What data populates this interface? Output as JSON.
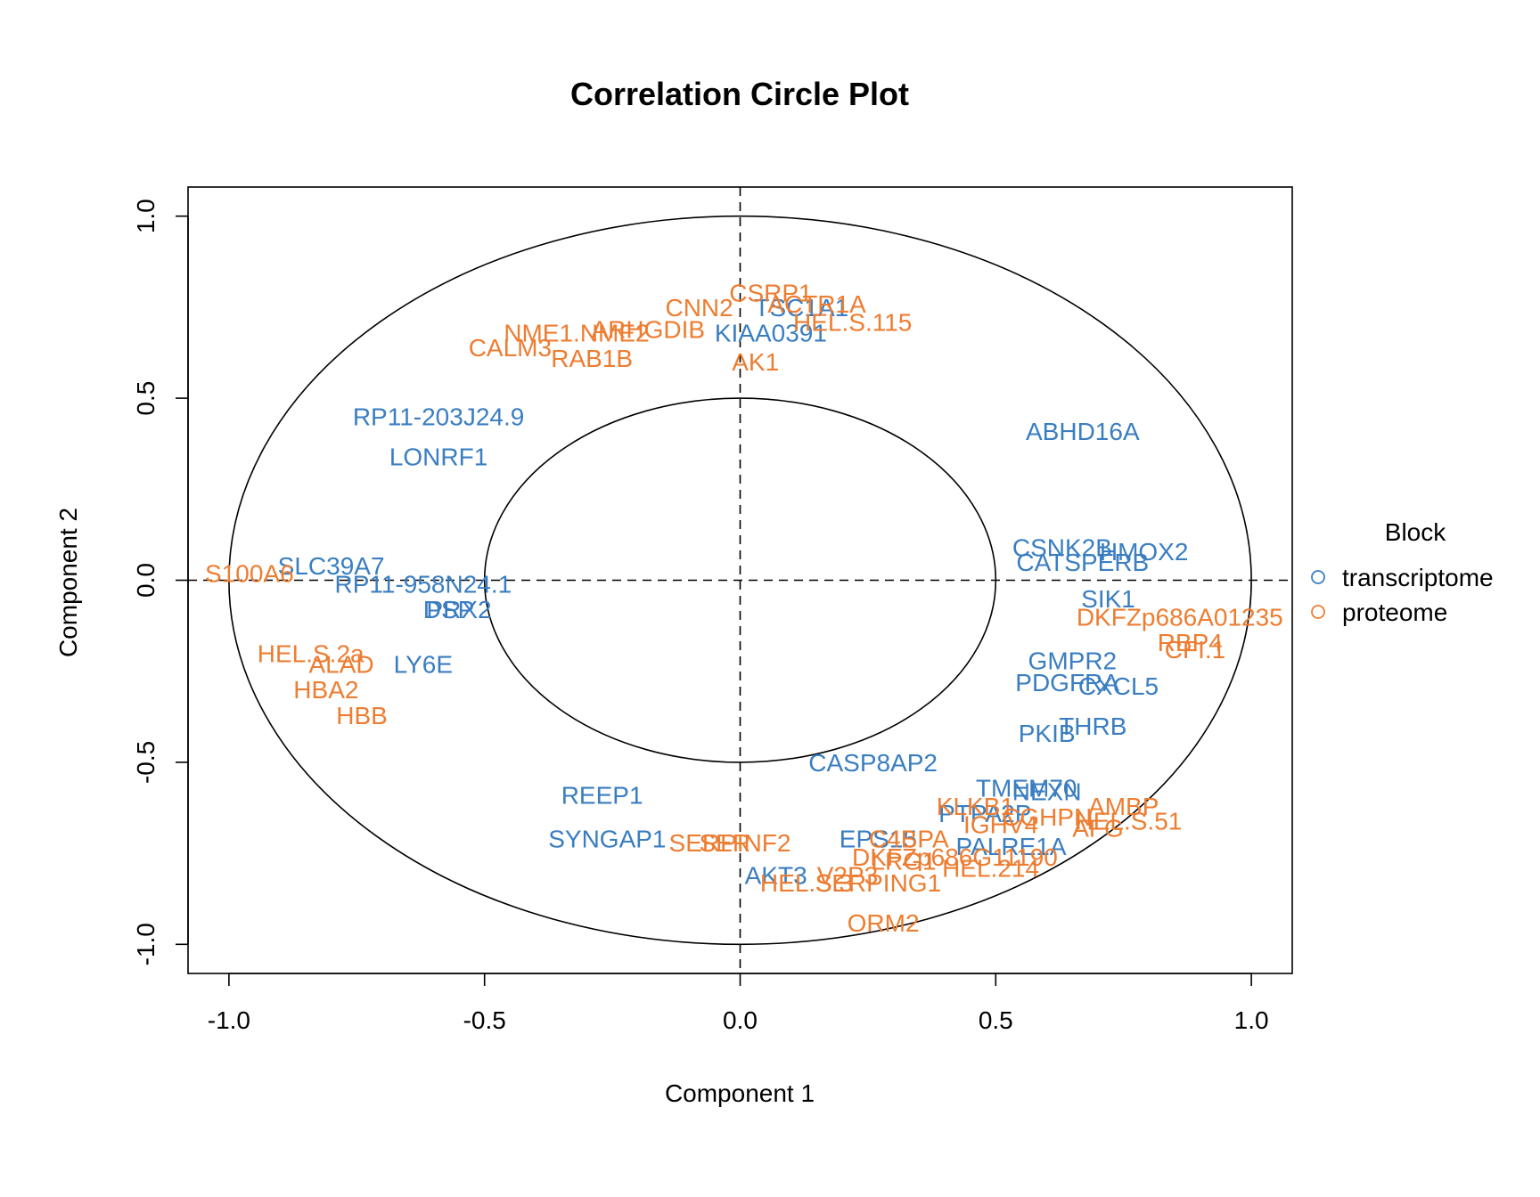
{
  "chart_data": {
    "type": "scatter",
    "title": "Correlation Circle Plot",
    "xlabel": "Component  1",
    "ylabel": "Component  2",
    "xlim": [
      -1.08,
      1.08
    ],
    "ylim": [
      -1.08,
      1.08
    ],
    "xticks": [
      -1.0,
      -0.5,
      0.0,
      0.5,
      1.0
    ],
    "yticks": [
      -1.0,
      -0.5,
      0.0,
      0.5,
      1.0
    ],
    "xtick_labels": [
      "-1.0",
      "-0.5",
      "0.0",
      "0.5",
      "1.0"
    ],
    "ytick_labels": [
      "-1.0",
      "-0.5",
      "0.0",
      "0.5",
      "1.0"
    ],
    "circles": [
      0.5,
      1.0
    ],
    "reference_lines": {
      "x": 0,
      "y": 0,
      "style": "dashed"
    },
    "legend": {
      "title": "Block",
      "position": "right",
      "entries": [
        {
          "name": "transcriptome",
          "color": "#3A7EC1"
        },
        {
          "name": "proteome",
          "color": "#ED7D31"
        }
      ]
    },
    "series": [
      {
        "name": "transcriptome",
        "color": "#3A7EC1",
        "points": [
          {
            "label": "RP11-203J24.9",
            "x": -0.59,
            "y": 0.45
          },
          {
            "label": "LONRF1",
            "x": -0.59,
            "y": 0.34
          },
          {
            "label": "ABHD16A",
            "x": 0.67,
            "y": 0.41
          },
          {
            "label": "SLC39A7",
            "x": -0.8,
            "y": 0.04
          },
          {
            "label": "RP11-958N24.1",
            "x": -0.62,
            "y": -0.01
          },
          {
            "label": "DSP",
            "x": -0.57,
            "y": -0.08
          },
          {
            "label": "PRX2",
            "x": -0.55,
            "y": -0.08
          },
          {
            "label": "LY6E",
            "x": -0.62,
            "y": -0.23
          },
          {
            "label": "KIAA0391",
            "x": 0.06,
            "y": 0.68
          },
          {
            "label": "TSC1A1",
            "x": 0.12,
            "y": 0.75
          },
          {
            "label": "CSNK2B",
            "x": 0.63,
            "y": 0.09
          },
          {
            "label": "CATSPERB",
            "x": 0.67,
            "y": 0.05
          },
          {
            "label": "HMOX2",
            "x": 0.79,
            "y": 0.08
          },
          {
            "label": "SIK1",
            "x": 0.72,
            "y": -0.05
          },
          {
            "label": "GMPR2",
            "x": 0.65,
            "y": -0.22
          },
          {
            "label": "PDGFRA",
            "x": 0.64,
            "y": -0.28
          },
          {
            "label": "CXCL5",
            "x": 0.74,
            "y": -0.29
          },
          {
            "label": "PKIB",
            "x": 0.6,
            "y": -0.42
          },
          {
            "label": "THRB",
            "x": 0.69,
            "y": -0.4
          },
          {
            "label": "CASP8AP2",
            "x": 0.26,
            "y": -0.5
          },
          {
            "label": "REEP1",
            "x": -0.27,
            "y": -0.59
          },
          {
            "label": "SYNGAP1",
            "x": -0.26,
            "y": -0.71
          },
          {
            "label": "AKT3",
            "x": 0.07,
            "y": -0.81
          },
          {
            "label": "EPS15",
            "x": 0.27,
            "y": -0.71
          },
          {
            "label": "TMEM70",
            "x": 0.56,
            "y": -0.57
          },
          {
            "label": "NEXN",
            "x": 0.6,
            "y": -0.58
          },
          {
            "label": "PTPA",
            "x": 0.45,
            "y": -0.64
          },
          {
            "label": "2P",
            "x": 0.54,
            "y": -0.64
          },
          {
            "label": "PALRE1A",
            "x": 0.53,
            "y": -0.73
          }
        ]
      },
      {
        "name": "proteome",
        "color": "#ED7D31",
        "points": [
          {
            "label": "CSRP1",
            "x": 0.06,
            "y": 0.79
          },
          {
            "label": "CNN2",
            "x": -0.08,
            "y": 0.75
          },
          {
            "label": "ACTR1A",
            "x": 0.15,
            "y": 0.76
          },
          {
            "label": "HEL.S.115",
            "x": 0.22,
            "y": 0.71
          },
          {
            "label": "ARHGDIB",
            "x": -0.18,
            "y": 0.69
          },
          {
            "label": "NME1.NME2",
            "x": -0.32,
            "y": 0.68
          },
          {
            "label": "CALM3",
            "x": -0.45,
            "y": 0.64
          },
          {
            "label": "RAB1B",
            "x": -0.29,
            "y": 0.61
          },
          {
            "label": "AK1",
            "x": 0.03,
            "y": 0.6
          },
          {
            "label": "S100A6",
            "x": -0.96,
            "y": 0.02
          },
          {
            "label": "HEL.S.2a",
            "x": -0.84,
            "y": -0.2
          },
          {
            "label": "ALAD",
            "x": -0.78,
            "y": -0.23
          },
          {
            "label": "HBA2",
            "x": -0.81,
            "y": -0.3
          },
          {
            "label": "HBB",
            "x": -0.74,
            "y": -0.37
          },
          {
            "label": "DKFZp686A01235",
            "x": 0.86,
            "y": -0.1
          },
          {
            "label": "RBP4",
            "x": 0.88,
            "y": -0.17
          },
          {
            "label": "CFI.1",
            "x": 0.89,
            "y": -0.19
          },
          {
            "label": "SERPINF2",
            "x": -0.02,
            "y": -0.72
          },
          {
            "label": "SER",
            "x": -0.03,
            "y": -0.72
          },
          {
            "label": "HEL.S.3",
            "x": 0.13,
            "y": -0.83
          },
          {
            "label": "SERPING1",
            "x": 0.27,
            "y": -0.83
          },
          {
            "label": "V2P3",
            "x": 0.21,
            "y": -0.81
          },
          {
            "label": "ORM2",
            "x": 0.28,
            "y": -0.94
          },
          {
            "label": "AMBP",
            "x": 0.75,
            "y": -0.62
          },
          {
            "label": "HEL.S.51",
            "x": 0.76,
            "y": -0.66
          },
          {
            "label": "AFG",
            "x": 0.7,
            "y": -0.68
          },
          {
            "label": "KLKB1",
            "x": 0.46,
            "y": -0.62
          },
          {
            "label": "IGHV4",
            "x": 0.51,
            "y": -0.67
          },
          {
            "label": "CGHPN",
            "x": 0.6,
            "y": -0.65
          },
          {
            "label": "C4BPA",
            "x": 0.33,
            "y": -0.71
          },
          {
            "label": "DKFZp686G11190",
            "x": 0.42,
            "y": -0.76
          },
          {
            "label": "HEL.214",
            "x": 0.49,
            "y": -0.79
          },
          {
            "label": "LRG1",
            "x": 0.32,
            "y": -0.77
          }
        ]
      }
    ]
  }
}
